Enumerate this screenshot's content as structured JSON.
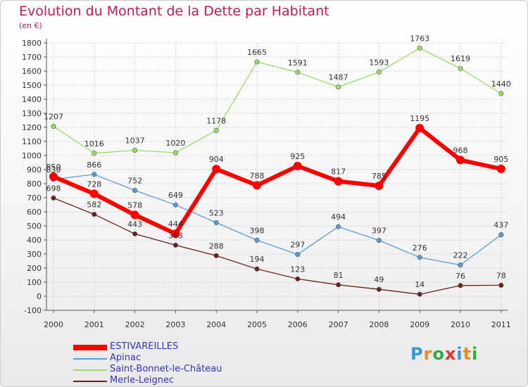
{
  "chart_data": {
    "type": "line",
    "title": "Evolution du Montant de la Dette par Habitant",
    "subtitle": "(en €)",
    "x": [
      "2000",
      "2001",
      "2002",
      "2003",
      "2004",
      "2005",
      "2006",
      "2007",
      "2008",
      "2009",
      "2010",
      "2011"
    ],
    "ylim": [
      -100,
      1800
    ],
    "yticks": [
      "-100",
      "0",
      "100",
      "200",
      "300",
      "400",
      "500",
      "600",
      "700",
      "800",
      "900",
      "1000",
      "1100",
      "1200",
      "1300",
      "1400",
      "1500",
      "1600",
      "1700",
      "1800"
    ],
    "grid": true,
    "legend_position": "bottom-left",
    "series": [
      {
        "name": "ESTIVAREILLES",
        "color": "#ff0000",
        "values": [
          850,
          728,
          578,
          444,
          904,
          788,
          925,
          817,
          785,
          1195,
          968,
          905
        ]
      },
      {
        "name": "Apinac",
        "color": "#5b9bd5",
        "values": [
          830,
          866,
          752,
          649,
          523,
          398,
          297,
          494,
          397,
          276,
          222,
          437
        ]
      },
      {
        "name": "Saint-Bonnet-le-Château",
        "color": "#99dd66",
        "values": [
          1207,
          1016,
          1037,
          1020,
          1178,
          1665,
          1591,
          1487,
          1593,
          1763,
          1619,
          1440
        ]
      },
      {
        "name": "Merle-Leignec",
        "color": "#6b1f1f",
        "values": [
          698,
          582,
          443,
          363,
          288,
          194,
          123,
          81,
          49,
          14,
          76,
          78
        ]
      }
    ]
  },
  "logo": {
    "letters": [
      "P",
      "r",
      "o",
      "x",
      "i",
      "t",
      "i"
    ],
    "colors": [
      "#3399dd",
      "#ee8822",
      "#33aa44",
      "#dd3333",
      "#3399dd",
      "#ee8822",
      "#33aa44"
    ]
  }
}
